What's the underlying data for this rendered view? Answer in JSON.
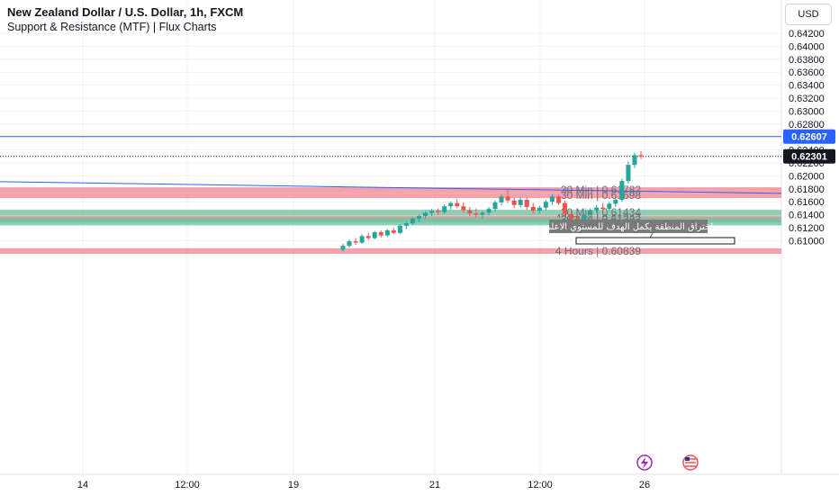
{
  "header": {
    "symbol_title": "New Zealand Dollar / U.S. Dollar, 1h, FXCM",
    "indicator_title": "Support & Resistance (MTF) | Flux Charts"
  },
  "currency_button": "USD",
  "icons": [
    "lightning-icon",
    "us-flag-icon"
  ],
  "colors": {
    "up": "#26a69a",
    "down": "#ef5350",
    "resistance": "#f28b95",
    "support": "#6fc3a0",
    "line": "#2962ff",
    "price_badge": "#2962ff",
    "last_badge": "#131722"
  },
  "chart_data": {
    "type": "candlestick",
    "title": "New Zealand Dollar / U.S. Dollar, 1h, FXCM",
    "y_axis": {
      "side": "right",
      "range": [
        0.6083,
        0.6431
      ],
      "ticks": [
        "0.64200",
        "0.64000",
        "0.63800",
        "0.63600",
        "0.63400",
        "0.63200",
        "0.63000",
        "0.62800",
        "0.62400",
        "0.62200",
        "0.62000",
        "0.61800",
        "0.61600",
        "0.61400",
        "0.61200",
        "0.61000"
      ]
    },
    "x_axis": {
      "labels": [
        "14",
        "12:00",
        "19",
        "21",
        "12:00",
        "26"
      ]
    },
    "horizontal_line": {
      "value": 0.62607,
      "label": "0.62607"
    },
    "last_price": {
      "value": 0.62301,
      "label": "0.62301"
    },
    "trend_line": {
      "from": 0.6191,
      "to": 0.6173
    },
    "zones": [
      {
        "kind": "resistance",
        "value": 0.61782,
        "label": "30 Min | 0.61782"
      },
      {
        "kind": "resistance",
        "value": 0.61698,
        "label": "30 Min | 0.61698"
      },
      {
        "kind": "support",
        "value": 0.61434,
        "label": "30 Min | 0.61434"
      },
      {
        "kind": "resistance",
        "value": 0.61347,
        "label": "4 Hours | 0.61347"
      },
      {
        "kind": "support",
        "value": 0.61322,
        "label": "30 Min | 0.61322"
      },
      {
        "kind": "support",
        "value": 0.61278,
        "label": "30 Min | 0.61278"
      },
      {
        "kind": "resistance",
        "value": 0.60839,
        "label": "4 Hours | 0.60839"
      }
    ],
    "annotation": {
      "text": "اختراق المنطقة يكمل الهدف للمستوي الاعلي"
    },
    "candles": [
      {
        "o": 0.6086,
        "h": 0.6095,
        "l": 0.6083,
        "c": 0.6092
      },
      {
        "o": 0.6092,
        "h": 0.6102,
        "l": 0.6089,
        "c": 0.6099
      },
      {
        "o": 0.6099,
        "h": 0.6104,
        "l": 0.6094,
        "c": 0.6097
      },
      {
        "o": 0.6097,
        "h": 0.611,
        "l": 0.6095,
        "c": 0.6107
      },
      {
        "o": 0.6107,
        "h": 0.6112,
        "l": 0.6101,
        "c": 0.6104
      },
      {
        "o": 0.6104,
        "h": 0.6115,
        "l": 0.6102,
        "c": 0.6113
      },
      {
        "o": 0.6113,
        "h": 0.6116,
        "l": 0.6105,
        "c": 0.6108
      },
      {
        "o": 0.6108,
        "h": 0.6118,
        "l": 0.6106,
        "c": 0.6116
      },
      {
        "o": 0.6116,
        "h": 0.6119,
        "l": 0.611,
        "c": 0.6112
      },
      {
        "o": 0.6112,
        "h": 0.6125,
        "l": 0.611,
        "c": 0.6123
      },
      {
        "o": 0.6123,
        "h": 0.613,
        "l": 0.6118,
        "c": 0.6127
      },
      {
        "o": 0.6127,
        "h": 0.6136,
        "l": 0.6124,
        "c": 0.6134
      },
      {
        "o": 0.6134,
        "h": 0.614,
        "l": 0.6129,
        "c": 0.6138
      },
      {
        "o": 0.6138,
        "h": 0.6146,
        "l": 0.6134,
        "c": 0.6143
      },
      {
        "o": 0.6143,
        "h": 0.6149,
        "l": 0.6138,
        "c": 0.6146
      },
      {
        "o": 0.6146,
        "h": 0.615,
        "l": 0.614,
        "c": 0.6144
      },
      {
        "o": 0.6144,
        "h": 0.6156,
        "l": 0.6141,
        "c": 0.6153
      },
      {
        "o": 0.6153,
        "h": 0.6161,
        "l": 0.6148,
        "c": 0.6158
      },
      {
        "o": 0.6158,
        "h": 0.6164,
        "l": 0.615,
        "c": 0.6153
      },
      {
        "o": 0.6153,
        "h": 0.6159,
        "l": 0.6143,
        "c": 0.6147
      },
      {
        "o": 0.6147,
        "h": 0.6152,
        "l": 0.6138,
        "c": 0.6142
      },
      {
        "o": 0.6142,
        "h": 0.615,
        "l": 0.6136,
        "c": 0.614
      },
      {
        "o": 0.614,
        "h": 0.6146,
        "l": 0.6134,
        "c": 0.6143
      },
      {
        "o": 0.6143,
        "h": 0.6152,
        "l": 0.6139,
        "c": 0.6149
      },
      {
        "o": 0.6149,
        "h": 0.6162,
        "l": 0.6145,
        "c": 0.6159
      },
      {
        "o": 0.6159,
        "h": 0.6172,
        "l": 0.6154,
        "c": 0.6168
      },
      {
        "o": 0.6168,
        "h": 0.6178,
        "l": 0.6158,
        "c": 0.6162
      },
      {
        "o": 0.6162,
        "h": 0.6166,
        "l": 0.615,
        "c": 0.6155
      },
      {
        "o": 0.6155,
        "h": 0.6167,
        "l": 0.6151,
        "c": 0.6163
      },
      {
        "o": 0.6163,
        "h": 0.6166,
        "l": 0.6148,
        "c": 0.6152
      },
      {
        "o": 0.6152,
        "h": 0.6158,
        "l": 0.6142,
        "c": 0.6146
      },
      {
        "o": 0.6146,
        "h": 0.6154,
        "l": 0.6142,
        "c": 0.6151
      },
      {
        "o": 0.6151,
        "h": 0.6163,
        "l": 0.6147,
        "c": 0.616
      },
      {
        "o": 0.616,
        "h": 0.6172,
        "l": 0.6155,
        "c": 0.6168
      },
      {
        "o": 0.6168,
        "h": 0.6171,
        "l": 0.6155,
        "c": 0.6158
      },
      {
        "o": 0.6158,
        "h": 0.6162,
        "l": 0.6138,
        "c": 0.6141
      },
      {
        "o": 0.6141,
        "h": 0.6146,
        "l": 0.6128,
        "c": 0.6134
      },
      {
        "o": 0.6134,
        "h": 0.614,
        "l": 0.6126,
        "c": 0.6131
      },
      {
        "o": 0.6131,
        "h": 0.6143,
        "l": 0.6127,
        "c": 0.614
      },
      {
        "o": 0.614,
        "h": 0.615,
        "l": 0.6136,
        "c": 0.6147
      },
      {
        "o": 0.6147,
        "h": 0.6155,
        "l": 0.6143,
        "c": 0.6151
      },
      {
        "o": 0.6151,
        "h": 0.6158,
        "l": 0.6146,
        "c": 0.6149
      },
      {
        "o": 0.6149,
        "h": 0.616,
        "l": 0.6146,
        "c": 0.6157
      },
      {
        "o": 0.6157,
        "h": 0.6166,
        "l": 0.6152,
        "c": 0.6163
      },
      {
        "o": 0.6163,
        "h": 0.6196,
        "l": 0.616,
        "c": 0.6192
      },
      {
        "o": 0.6192,
        "h": 0.6222,
        "l": 0.6188,
        "c": 0.6217
      },
      {
        "o": 0.6217,
        "h": 0.6236,
        "l": 0.6212,
        "c": 0.6232
      },
      {
        "o": 0.6232,
        "h": 0.6238,
        "l": 0.6226,
        "c": 0.623
      }
    ]
  }
}
